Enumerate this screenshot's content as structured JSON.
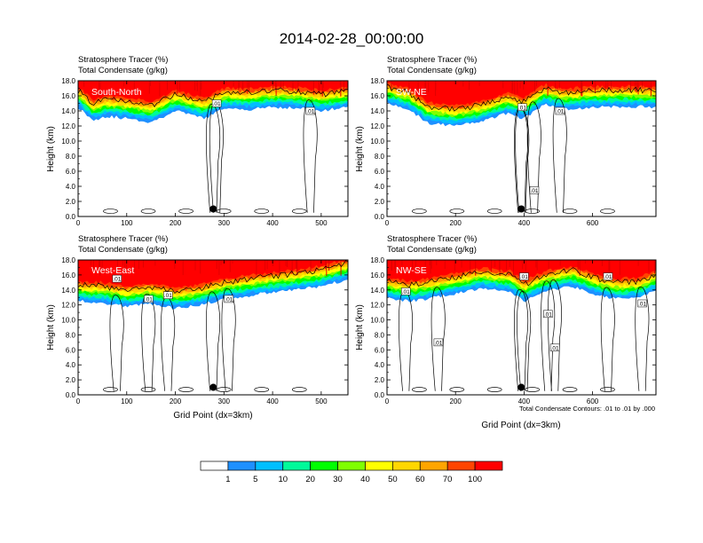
{
  "title": "2014-02-28_00:00:00",
  "colors": {
    "levels": [
      "#ffffff",
      "#1e90ff",
      "#00bfff",
      "#00fa9a",
      "#00ff00",
      "#7fff00",
      "#ffff00",
      "#ffd700",
      "#ffa500",
      "#ff4500",
      "#ff0000"
    ]
  },
  "colorbar": {
    "labels": [
      "1",
      "5",
      "10",
      "20",
      "30",
      "40",
      "50",
      "60",
      "70",
      "100"
    ]
  },
  "panels": [
    {
      "id": "south-north",
      "header1": "Stratosphere Tracer   (%)",
      "header2": "Total Condensate   (g/kg)",
      "label": "South-North",
      "xlabel": "",
      "note": ""
    },
    {
      "id": "sw-ne",
      "header1": "Stratosphere Tracer   (%)",
      "header2": "Total Condensate   (g/kg)",
      "label": "SW-NE",
      "xlabel": "",
      "note": ""
    },
    {
      "id": "west-east",
      "header1": "Stratosphere Tracer   (%)",
      "header2": "Total Condensate   (g/kg)",
      "label": "West-East",
      "xlabel": "Grid Point (dx=3km)",
      "note": ""
    },
    {
      "id": "nw-se",
      "header1": "Stratosphere Tracer   (%)",
      "header2": "Total Condensate   (g/kg)",
      "label": "NW-SE",
      "xlabel": "Grid Point (dx=3km)",
      "note": "Total Condensate Contours: .01 to .01 by .000"
    }
  ],
  "chart_data": [
    {
      "type": "heatmap",
      "panel": "South-North",
      "ylabel": "Height (km)",
      "xlabel": "",
      "xlim": [
        0,
        555
      ],
      "ylim": [
        0,
        18
      ],
      "xticks": [
        "0",
        "100",
        "200",
        "300",
        "400",
        "500"
      ],
      "yticks": [
        "0.0",
        "2.0",
        "4.0",
        "6.0",
        "8.0",
        "10.0",
        "12.0",
        "14.0",
        "16.0",
        "18.0"
      ],
      "tropopause_base_km": [
        [
          0,
          14.5
        ],
        [
          30,
          12.8
        ],
        [
          60,
          13.3
        ],
        [
          100,
          13.0
        ],
        [
          150,
          12.5
        ],
        [
          200,
          14.0
        ],
        [
          260,
          13.0
        ],
        [
          300,
          14.3
        ],
        [
          350,
          14.2
        ],
        [
          400,
          14.5
        ],
        [
          450,
          14.4
        ],
        [
          500,
          14.0
        ],
        [
          555,
          14.5
        ]
      ],
      "marker": {
        "x": 278,
        "y_km": 1.0
      },
      "contour_labels": [
        {
          "text": ".01",
          "x": 285,
          "y_km": 15.0
        },
        {
          "text": ".01",
          "x": 478,
          "y_km": 14.0
        }
      ]
    },
    {
      "type": "heatmap",
      "panel": "SW-NE",
      "ylabel": "Height (km)",
      "xlabel": "",
      "xlim": [
        0,
        785
      ],
      "ylim": [
        0,
        18
      ],
      "xticks": [
        "0",
        "200",
        "400",
        "600"
      ],
      "yticks": [
        "0.0",
        "2.0",
        "4.0",
        "6.0",
        "8.0",
        "10.0",
        "12.0",
        "14.0",
        "16.0",
        "18.0"
      ],
      "tropopause_base_km": [
        [
          0,
          15.0
        ],
        [
          60,
          14.3
        ],
        [
          120,
          12.4
        ],
        [
          200,
          12.0
        ],
        [
          280,
          12.6
        ],
        [
          350,
          13.7
        ],
        [
          400,
          13.0
        ],
        [
          460,
          14.8
        ],
        [
          520,
          14.2
        ],
        [
          600,
          14.5
        ],
        [
          700,
          14.6
        ],
        [
          785,
          14.5
        ]
      ],
      "marker": {
        "x": 392,
        "y_km": 1.0
      },
      "contour_labels": [
        {
          "text": ".01",
          "x": 395,
          "y_km": 14.5
        },
        {
          "text": ".01",
          "x": 505,
          "y_km": 14.0
        },
        {
          "text": ".01",
          "x": 430,
          "y_km": 3.5
        }
      ]
    },
    {
      "type": "heatmap",
      "panel": "West-East",
      "ylabel": "Height (km)",
      "xlabel": "Grid Point (dx=3km)",
      "xlim": [
        0,
        555
      ],
      "ylim": [
        0,
        18
      ],
      "xticks": [
        "0",
        "100",
        "200",
        "300",
        "400",
        "500"
      ],
      "yticks": [
        "0.0",
        "2.0",
        "4.0",
        "6.0",
        "8.0",
        "10.0",
        "12.0",
        "14.0",
        "16.0",
        "18.0"
      ],
      "tropopause_base_km": [
        [
          0,
          12.5
        ],
        [
          50,
          12.3
        ],
        [
          100,
          11.8
        ],
        [
          150,
          12.2
        ],
        [
          200,
          11.5
        ],
        [
          250,
          12.0
        ],
        [
          300,
          12.8
        ],
        [
          380,
          13.5
        ],
        [
          450,
          14.0
        ],
        [
          500,
          14.5
        ],
        [
          555,
          15.4
        ]
      ],
      "marker": {
        "x": 278,
        "y_km": 1.0
      },
      "contour_labels": [
        {
          "text": ".01",
          "x": 80,
          "y_km": 15.5
        },
        {
          "text": ".01",
          "x": 145,
          "y_km": 12.8
        },
        {
          "text": ".01",
          "x": 185,
          "y_km": 13.3
        },
        {
          "text": ".01",
          "x": 310,
          "y_km": 12.8
        }
      ]
    },
    {
      "type": "heatmap",
      "panel": "NW-SE",
      "ylabel": "Height (km)",
      "xlabel": "Grid Point (dx=3km)",
      "xlim": [
        0,
        785
      ],
      "ylim": [
        0,
        18
      ],
      "xticks": [
        "0",
        "200",
        "400",
        "600"
      ],
      "yticks": [
        "0.0",
        "2.0",
        "4.0",
        "6.0",
        "8.0",
        "10.0",
        "12.0",
        "14.0",
        "16.0",
        "18.0"
      ],
      "tropopause_base_km": [
        [
          0,
          13.0
        ],
        [
          60,
          12.5
        ],
        [
          120,
          12.8
        ],
        [
          200,
          13.5
        ],
        [
          280,
          14.2
        ],
        [
          360,
          13.8
        ],
        [
          400,
          12.5
        ],
        [
          460,
          13.8
        ],
        [
          540,
          14.5
        ],
        [
          620,
          13.2
        ],
        [
          680,
          12.8
        ],
        [
          740,
          13.0
        ],
        [
          785,
          14.0
        ]
      ],
      "marker": {
        "x": 392,
        "y_km": 1.0
      },
      "contour_labels": [
        {
          "text": ".01",
          "x": 55,
          "y_km": 13.8
        },
        {
          "text": ".01",
          "x": 150,
          "y_km": 7.0
        },
        {
          "text": ".01",
          "x": 400,
          "y_km": 15.8
        },
        {
          "text": ".01",
          "x": 470,
          "y_km": 10.8
        },
        {
          "text": ".01",
          "x": 490,
          "y_km": 6.3
        },
        {
          "text": ".01",
          "x": 645,
          "y_km": 15.8
        },
        {
          "text": ".01",
          "x": 745,
          "y_km": 12.2
        }
      ]
    }
  ]
}
